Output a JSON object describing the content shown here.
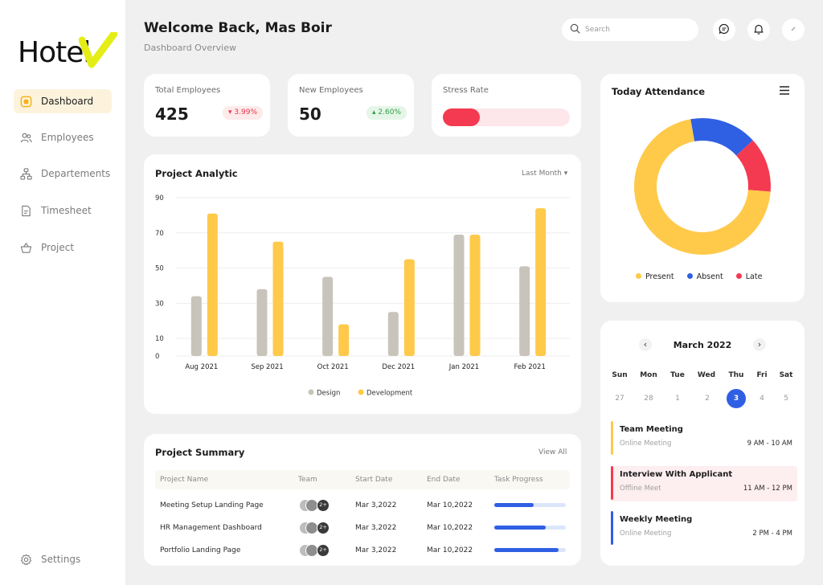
{
  "brand": {
    "logo_text": "Hotel"
  },
  "sidebar": {
    "items": [
      {
        "label": "Dashboard",
        "icon": "dashboard-icon"
      },
      {
        "label": "Employees",
        "icon": "users-icon"
      },
      {
        "label": "Departements",
        "icon": "hierarchy-icon"
      },
      {
        "label": "Timesheet",
        "icon": "document-icon"
      },
      {
        "label": "Project",
        "icon": "basket-icon"
      }
    ],
    "settings_label": "Settings"
  },
  "header": {
    "title": "Welcome Back, Mas Boir",
    "subtitle": "Dashboard Overview",
    "search_placeholder": "Search"
  },
  "stats": {
    "total_employees": {
      "label": "Total Employees",
      "value": "425",
      "change": "3.99%",
      "change_arrow": "▾"
    },
    "new_employees": {
      "label": "New Employees",
      "value": "50",
      "change": "2.60%",
      "change_arrow": "▴"
    },
    "stress_rate": {
      "label": "Stress Rate",
      "level": 0.29
    }
  },
  "analytic": {
    "title": "Project Analytic",
    "period": "Last Month",
    "chevron": "▾"
  },
  "chart_data": {
    "type": "bar",
    "categories": [
      "Aug 2021",
      "Sep 2021",
      "Oct 2021",
      "Dec 2021",
      "Jan 2021",
      "Feb 2021"
    ],
    "series": [
      {
        "name": "Design",
        "values": [
          34,
          38,
          45,
          25,
          69,
          51
        ],
        "color": "#c9c4bb"
      },
      {
        "name": "Development",
        "values": [
          81,
          65,
          18,
          55,
          69,
          84
        ],
        "color": "#ffc94a"
      }
    ],
    "y_ticks": [
      "90",
      "70",
      "50",
      "30",
      "10",
      "0"
    ],
    "ylim": [
      0,
      100
    ],
    "legend_position": "bottom",
    "grid": true
  },
  "summary": {
    "title": "Project Summary",
    "view_all": "View All",
    "columns": [
      "Project Name",
      "Team",
      "Start Date",
      "End Date",
      "Task Progress"
    ],
    "rows": [
      {
        "name": "Meeting Setup Landing Page",
        "team_more": "2+",
        "start": "Mar 3,2022",
        "end": "Mar 10,2022",
        "progress": 0.55
      },
      {
        "name": "HR Management Dashboard",
        "team_more": "2+",
        "start": "Mar 3,2022",
        "end": "Mar 10,2022",
        "progress": 0.72
      },
      {
        "name": "Portfolio Landing Page",
        "team_more": "2+",
        "start": "Mar 3,2022",
        "end": "Mar 10,2022",
        "progress": 0.9
      }
    ]
  },
  "attendance": {
    "title": "Today Attendance",
    "legend": [
      {
        "label": "Present",
        "color": "#ffc94a",
        "share": 0.71
      },
      {
        "label": "Absent",
        "color": "#2f5fe3",
        "share": 0.16
      },
      {
        "label": "Late",
        "color": "#f43a50",
        "share": 0.13
      }
    ]
  },
  "calendar": {
    "month": "March 2022",
    "prev": "‹",
    "next": "›",
    "weekdays": [
      "Sun",
      "Mon",
      "Tue",
      "Wed",
      "Thu",
      "Fri",
      "Sat"
    ],
    "dates": [
      "27",
      "28",
      "1",
      "2",
      "3",
      "4",
      "5"
    ],
    "selected": "3",
    "events": [
      {
        "title": "Team Meeting",
        "type": "Online Meeting",
        "time": "9 AM - 10 AM",
        "color": "#ffc94a",
        "bg": "#ffffff"
      },
      {
        "title": "Interview With Applicant",
        "type": "Offline Meet",
        "time": "11 AM - 12 PM",
        "color": "#f43a50",
        "bg": "#fdeef0"
      },
      {
        "title": "Weekly Meeting",
        "type": "Online Meeting",
        "time": "2 PM - 4 PM",
        "color": "#2f5fe3",
        "bg": "#ffffff"
      }
    ]
  }
}
